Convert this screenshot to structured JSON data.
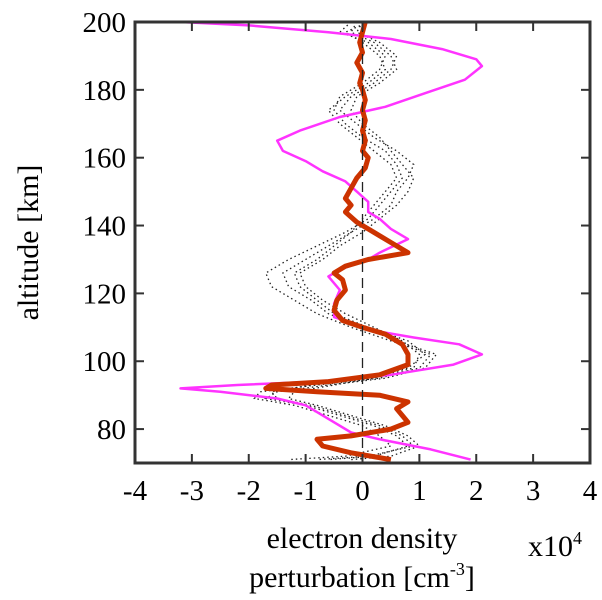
{
  "chart_data": {
    "type": "line",
    "xlabel_line1": "electron density",
    "xlabel_line2_prefix": "perturbation [cm",
    "xlabel_line2_exp": "-3",
    "xlabel_line2_suffix": "]",
    "x_multiplier_base": "x10",
    "x_multiplier_exp": "4",
    "ylabel": "altitude [km]",
    "xlim": [
      -4,
      4
    ],
    "ylim": [
      70,
      200
    ],
    "xticks": [
      -4,
      -3,
      -2,
      -1,
      0,
      1,
      2,
      3,
      4
    ],
    "xtick_labels": [
      "-4",
      "-3",
      "-2",
      "-1",
      "0",
      "1",
      "2",
      "3",
      "4"
    ],
    "yticks": [
      80,
      100,
      120,
      140,
      160,
      180,
      200
    ],
    "ytick_labels": [
      "80",
      "100",
      "120",
      "140",
      "160",
      "180",
      "200"
    ],
    "grid": false,
    "reference_line_x": 0,
    "colors": {
      "magenta": "#ff33ff",
      "dark_orange": "#cc3300",
      "dotted": "#222222"
    },
    "series": [
      {
        "style": "magenta",
        "points": [
          [
            -3.2,
            200
          ],
          [
            -2.0,
            199
          ],
          [
            -0.6,
            197
          ],
          [
            0.5,
            195
          ],
          [
            1.4,
            192
          ],
          [
            2.0,
            189
          ],
          [
            2.1,
            187
          ],
          [
            1.8,
            183
          ],
          [
            1.1,
            179
          ],
          [
            0.4,
            175
          ],
          [
            -0.4,
            172
          ],
          [
            -1.1,
            168
          ],
          [
            -1.5,
            165
          ],
          [
            -1.4,
            162
          ],
          [
            -1.0,
            159
          ],
          [
            -0.7,
            156
          ],
          [
            -0.3,
            153
          ],
          [
            -0.1,
            150
          ],
          [
            0.1,
            147
          ],
          [
            0.1,
            144
          ],
          [
            0.3,
            142
          ],
          [
            0.5,
            139
          ],
          [
            0.8,
            136
          ],
          [
            0.3,
            132
          ],
          [
            0.1,
            130
          ],
          [
            -0.4,
            127
          ],
          [
            -0.6,
            125
          ],
          [
            -0.4,
            121
          ],
          [
            -0.5,
            117
          ],
          [
            -0.5,
            113
          ],
          [
            0.2,
            109
          ],
          [
            0.9,
            107
          ],
          [
            1.7,
            105
          ],
          [
            2.1,
            102
          ],
          [
            1.6,
            99
          ],
          [
            0.5,
            96
          ],
          [
            -0.8,
            94
          ],
          [
            -2.2,
            93
          ],
          [
            -3.2,
            92
          ],
          [
            -2.5,
            91
          ],
          [
            -1.5,
            89
          ],
          [
            -1.0,
            87
          ],
          [
            -0.8,
            85
          ],
          [
            -0.5,
            82
          ],
          [
            -0.2,
            79
          ],
          [
            0.3,
            77
          ],
          [
            1.2,
            74
          ],
          [
            1.9,
            71
          ]
        ]
      },
      {
        "style": "dark_orange",
        "points": [
          [
            0.05,
            200
          ],
          [
            0.0,
            197
          ],
          [
            -0.05,
            194
          ],
          [
            0.0,
            191
          ],
          [
            -0.1,
            188
          ],
          [
            0.0,
            185
          ],
          [
            -0.05,
            182
          ],
          [
            0.0,
            180
          ],
          [
            0.05,
            177
          ],
          [
            0.0,
            174
          ],
          [
            0.05,
            171
          ],
          [
            0.0,
            168
          ],
          [
            0.05,
            165
          ],
          [
            0.0,
            162
          ],
          [
            0.1,
            160
          ],
          [
            0.05,
            157
          ],
          [
            -0.1,
            154
          ],
          [
            -0.2,
            151
          ],
          [
            -0.3,
            148
          ],
          [
            -0.2,
            146
          ],
          [
            -0.3,
            144
          ],
          [
            -0.1,
            141
          ],
          [
            0.2,
            138
          ],
          [
            0.5,
            135
          ],
          [
            0.8,
            132
          ],
          [
            0.1,
            130
          ],
          [
            -0.3,
            128
          ],
          [
            -0.5,
            126
          ],
          [
            -0.35,
            124
          ],
          [
            -0.3,
            121
          ],
          [
            -0.45,
            118
          ],
          [
            -0.5,
            115
          ],
          [
            -0.35,
            112
          ],
          [
            0.0,
            110
          ],
          [
            0.4,
            108
          ],
          [
            0.7,
            105
          ],
          [
            0.8,
            102
          ],
          [
            0.8,
            99
          ],
          [
            0.3,
            96
          ],
          [
            -0.6,
            94
          ],
          [
            -1.6,
            93
          ],
          [
            -1.7,
            92
          ],
          [
            -0.8,
            91
          ],
          [
            0.3,
            90
          ],
          [
            0.8,
            88
          ],
          [
            0.6,
            86
          ],
          [
            0.7,
            84
          ],
          [
            0.8,
            82
          ],
          [
            0.5,
            80
          ],
          [
            -0.2,
            78
          ],
          [
            -0.8,
            77
          ],
          [
            -0.7,
            75
          ],
          [
            -0.2,
            73
          ],
          [
            0.5,
            71
          ]
        ]
      },
      {
        "style": "dotted",
        "points": [
          [
            -0.2,
            200
          ],
          [
            -0.4,
            197
          ],
          [
            0.1,
            194
          ],
          [
            0.4,
            190
          ],
          [
            0.3,
            186
          ],
          [
            0.0,
            182
          ],
          [
            -0.4,
            178
          ],
          [
            -0.5,
            174
          ],
          [
            -0.3,
            170
          ],
          [
            0.0,
            166
          ],
          [
            0.4,
            162
          ],
          [
            0.6,
            158
          ],
          [
            0.7,
            154
          ],
          [
            0.5,
            150
          ],
          [
            0.3,
            146
          ],
          [
            0.1,
            142
          ],
          [
            -0.3,
            138
          ],
          [
            -0.8,
            134
          ],
          [
            -1.3,
            130
          ],
          [
            -1.7,
            126
          ],
          [
            -1.6,
            122
          ],
          [
            -1.2,
            118
          ],
          [
            -0.8,
            114
          ],
          [
            -0.2,
            110
          ],
          [
            0.5,
            106
          ],
          [
            1.2,
            102
          ],
          [
            1.0,
            98
          ],
          [
            0.3,
            95
          ],
          [
            -0.8,
            93
          ],
          [
            -1.8,
            91
          ],
          [
            -1.9,
            89
          ],
          [
            -1.2,
            87
          ],
          [
            -0.6,
            84
          ],
          [
            0.0,
            81
          ],
          [
            0.3,
            78
          ],
          [
            0.5,
            75
          ],
          [
            -0.3,
            72
          ],
          [
            -1.3,
            71
          ]
        ]
      },
      {
        "style": "dotted",
        "points": [
          [
            0.0,
            200
          ],
          [
            -0.1,
            197
          ],
          [
            0.3,
            194
          ],
          [
            0.6,
            190
          ],
          [
            0.5,
            186
          ],
          [
            0.2,
            182
          ],
          [
            -0.2,
            178
          ],
          [
            -0.4,
            174
          ],
          [
            -0.1,
            170
          ],
          [
            0.2,
            166
          ],
          [
            0.6,
            162
          ],
          [
            0.9,
            158
          ],
          [
            0.8,
            154
          ],
          [
            0.6,
            150
          ],
          [
            0.5,
            146
          ],
          [
            0.2,
            142
          ],
          [
            -0.2,
            138
          ],
          [
            -0.6,
            134
          ],
          [
            -1.0,
            130
          ],
          [
            -1.4,
            126
          ],
          [
            -1.3,
            122
          ],
          [
            -0.9,
            118
          ],
          [
            -0.6,
            114
          ],
          [
            0.0,
            110
          ],
          [
            0.6,
            106
          ],
          [
            1.3,
            102
          ],
          [
            1.1,
            98
          ],
          [
            0.4,
            95
          ],
          [
            -0.6,
            93
          ],
          [
            -1.5,
            91
          ],
          [
            -1.7,
            89
          ],
          [
            -1.0,
            87
          ],
          [
            -0.4,
            84
          ],
          [
            0.2,
            81
          ],
          [
            0.6,
            78
          ],
          [
            0.8,
            75
          ],
          [
            0.2,
            72
          ],
          [
            -0.6,
            71
          ]
        ]
      },
      {
        "style": "dotted",
        "points": [
          [
            -0.1,
            200
          ],
          [
            -0.2,
            197
          ],
          [
            0.2,
            194
          ],
          [
            0.5,
            190
          ],
          [
            0.6,
            186
          ],
          [
            0.3,
            182
          ],
          [
            -0.1,
            178
          ],
          [
            -0.2,
            174
          ],
          [
            0.0,
            170
          ],
          [
            0.3,
            166
          ],
          [
            0.5,
            162
          ],
          [
            0.7,
            158
          ],
          [
            0.9,
            154
          ],
          [
            0.8,
            150
          ],
          [
            0.6,
            146
          ],
          [
            0.3,
            142
          ],
          [
            0.0,
            138
          ],
          [
            -0.4,
            134
          ],
          [
            -0.7,
            130
          ],
          [
            -1.1,
            126
          ],
          [
            -1.0,
            122
          ],
          [
            -0.7,
            118
          ],
          [
            -0.3,
            114
          ],
          [
            0.2,
            110
          ],
          [
            0.7,
            106
          ],
          [
            1.0,
            102
          ],
          [
            0.9,
            98
          ],
          [
            0.2,
            95
          ],
          [
            -0.5,
            93
          ],
          [
            -1.2,
            91
          ],
          [
            -1.3,
            89
          ],
          [
            -0.8,
            87
          ],
          [
            -0.2,
            84
          ],
          [
            0.4,
            81
          ],
          [
            0.8,
            78
          ],
          [
            1.0,
            75
          ],
          [
            0.5,
            72
          ],
          [
            -0.2,
            71
          ]
        ]
      },
      {
        "style": "dotted",
        "points": [
          [
            0.1,
            200
          ],
          [
            -0.3,
            197
          ],
          [
            0.0,
            194
          ],
          [
            0.3,
            190
          ],
          [
            0.4,
            186
          ],
          [
            0.1,
            182
          ],
          [
            -0.3,
            178
          ],
          [
            -0.6,
            174
          ],
          [
            -0.4,
            170
          ],
          [
            -0.1,
            166
          ],
          [
            0.2,
            162
          ],
          [
            0.5,
            158
          ],
          [
            0.6,
            154
          ],
          [
            0.4,
            150
          ],
          [
            0.2,
            146
          ],
          [
            0.0,
            142
          ],
          [
            -0.2,
            138
          ],
          [
            -0.5,
            134
          ],
          [
            -0.8,
            130
          ],
          [
            -1.2,
            126
          ],
          [
            -1.1,
            122
          ],
          [
            -0.8,
            118
          ],
          [
            -0.5,
            114
          ],
          [
            0.1,
            110
          ],
          [
            0.8,
            106
          ],
          [
            1.1,
            102
          ],
          [
            0.8,
            98
          ],
          [
            0.1,
            95
          ],
          [
            -0.9,
            93
          ],
          [
            -1.6,
            91
          ],
          [
            -1.5,
            89
          ],
          [
            -0.9,
            87
          ],
          [
            -0.3,
            84
          ],
          [
            0.3,
            81
          ],
          [
            0.7,
            78
          ],
          [
            0.9,
            75
          ],
          [
            0.1,
            72
          ],
          [
            -0.8,
            71
          ]
        ]
      }
    ]
  }
}
